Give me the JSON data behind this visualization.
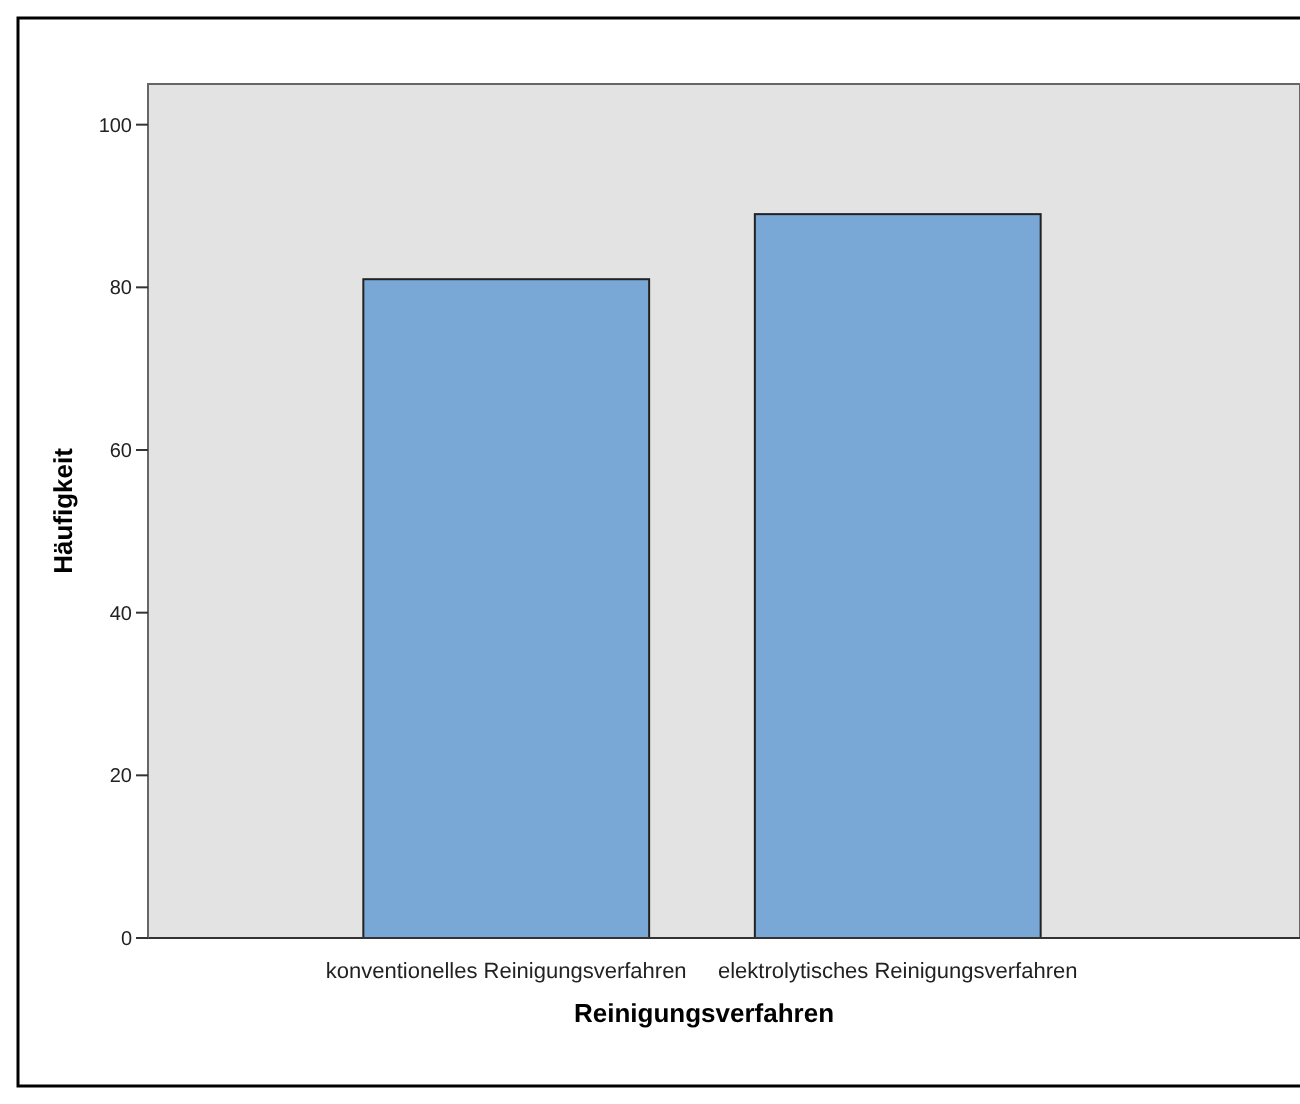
{
  "chart_data": {
    "type": "bar",
    "xlabel": "Reinigungsverfahren",
    "ylabel": "Häufigkeit",
    "categories": [
      "konventionelles Reinigungsverfahren",
      "elektrolytisches Reinigungsverfahren"
    ],
    "values": [
      81,
      89
    ],
    "color": "#79a8d6",
    "ylim": [
      0,
      105
    ],
    "yticks": [
      0,
      20,
      40,
      60,
      80,
      100
    ],
    "grid": false
  }
}
